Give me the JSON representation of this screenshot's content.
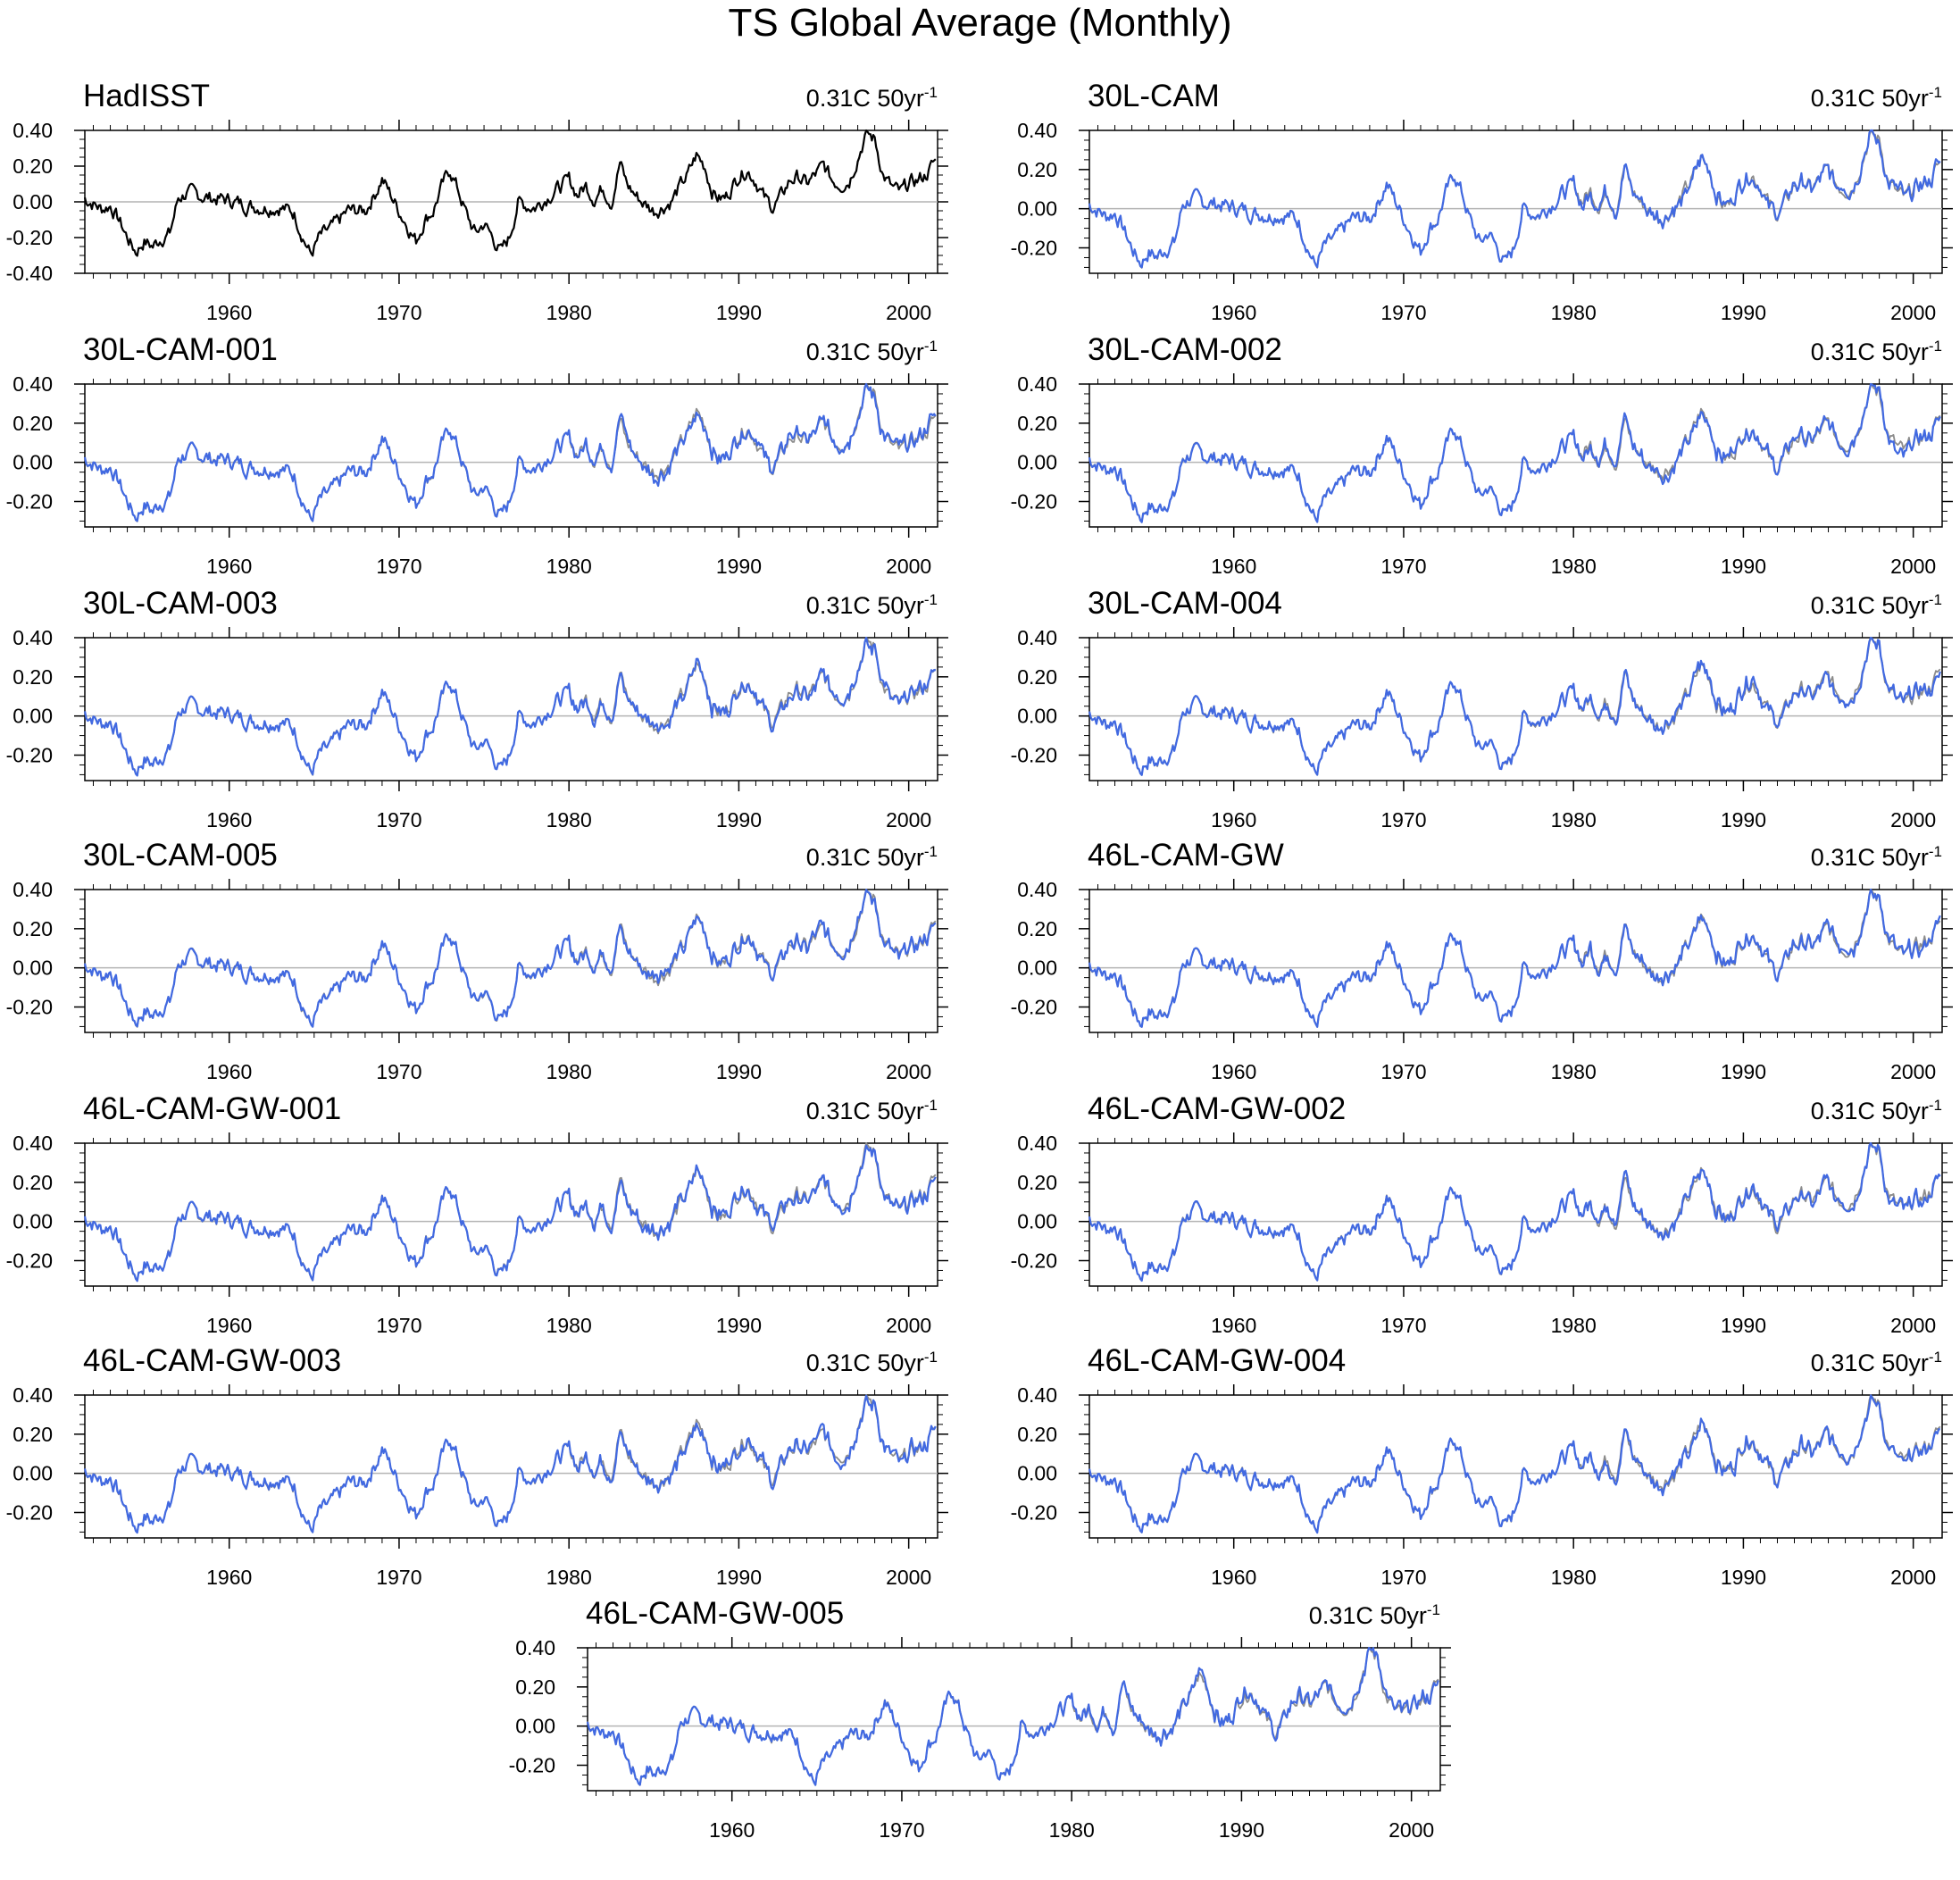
{
  "title": "TS Global Average (Monthly)",
  "colors": {
    "observed": "#000000",
    "model": "#4169e1",
    "reference": "#8c8c8c",
    "zero_line": "#b4b4b4",
    "axis": "#000000"
  },
  "chart_data": {
    "type": "line",
    "x_range": [
      1951.5,
      2001.7
    ],
    "xticks": [
      1960,
      1970,
      1980,
      1990,
      2000
    ],
    "xtick_labels": [
      "1960",
      "1970",
      "1980",
      "1990",
      "2000"
    ],
    "shared_monthly_anomaly_keypoints": {
      "x": [
        1951.5,
        1952.0,
        1952.5,
        1953.0,
        1953.5,
        1954.0,
        1954.5,
        1955.0,
        1955.5,
        1956.0,
        1956.5,
        1957.0,
        1957.5,
        1958.0,
        1958.5,
        1959.0,
        1960.0,
        1961.0,
        1962.0,
        1963.0,
        1963.8,
        1964.3,
        1964.8,
        1965.3,
        1966.0,
        1967.0,
        1968.0,
        1968.6,
        1969.0,
        1969.5,
        1970.0,
        1970.6,
        1971.0,
        1971.5,
        1972.0,
        1972.5,
        1973.0,
        1973.5,
        1974.0,
        1974.5,
        1975.0,
        1975.5,
        1976.0,
        1976.5,
        1977.0,
        1977.5,
        1978.0,
        1979.0,
        1980.0,
        1980.5,
        1981.0,
        1981.5,
        1982.0,
        1982.5,
        1983.0,
        1983.4,
        1983.8,
        1984.3,
        1985.0,
        1985.5,
        1986.0,
        1986.5,
        1987.0,
        1987.5,
        1988.0,
        1988.4,
        1988.8,
        1989.2,
        1990.0,
        1990.5,
        1991.0,
        1991.5,
        1992.0,
        1992.5,
        1993.0,
        1993.5,
        1994.0,
        1994.5,
        1995.0,
        1995.5,
        1996.0,
        1996.5,
        1997.0,
        1997.5,
        1998.0,
        1998.5,
        1999.0,
        1999.5,
        2000.0,
        2000.5,
        2001.0,
        2001.5
      ],
      "y": [
        0.02,
        -0.01,
        -0.04,
        -0.02,
        -0.1,
        -0.2,
        -0.28,
        -0.22,
        -0.25,
        -0.2,
        -0.18,
        0.02,
        0.05,
        0.04,
        0.03,
        0.02,
        0.01,
        -0.02,
        -0.03,
        -0.03,
        -0.06,
        -0.18,
        -0.3,
        -0.2,
        -0.15,
        -0.05,
        -0.05,
        0.05,
        0.13,
        0.04,
        -0.05,
        -0.15,
        -0.22,
        -0.1,
        -0.05,
        0.08,
        0.18,
        0.06,
        -0.08,
        -0.18,
        -0.12,
        -0.2,
        -0.28,
        -0.2,
        0.0,
        -0.02,
        -0.03,
        0.05,
        0.12,
        0.04,
        0.09,
        0.02,
        0.08,
        0.0,
        0.22,
        0.1,
        0.05,
        0.0,
        -0.05,
        -0.03,
        0.0,
        0.08,
        0.15,
        0.26,
        0.2,
        0.07,
        0.02,
        0.02,
        0.15,
        0.18,
        0.12,
        0.02,
        -0.03,
        0.03,
        0.12,
        0.14,
        0.1,
        0.15,
        0.2,
        0.12,
        0.1,
        0.12,
        0.25,
        0.38,
        0.35,
        0.15,
        0.08,
        0.05,
        0.1,
        0.12,
        0.15,
        0.22
      ]
    },
    "panels": [
      {
        "name": "HadISST",
        "trend": "0.31C 50yr",
        "trend_exp": "-1",
        "ylim": [
          -0.4,
          0.4
        ],
        "yticks": [
          -0.4,
          -0.2,
          0.0,
          0.2,
          0.4
        ],
        "ytick_labels": [
          "-0.40",
          "-0.20",
          "0.00",
          "0.20",
          "0.40"
        ],
        "series": [
          {
            "role": "observed",
            "seed": 1
          }
        ]
      },
      {
        "name": "30L-CAM",
        "trend": "0.31C 50yr",
        "trend_exp": "-1",
        "ylim": [
          -0.33,
          0.4
        ],
        "yticks": [
          -0.2,
          0.0,
          0.2,
          0.4
        ],
        "ytick_labels": [
          "-0.20",
          "0.00",
          "0.20",
          "0.40"
        ],
        "series": [
          {
            "role": "reference",
            "seed": 1
          },
          {
            "role": "model",
            "seed": 2
          }
        ]
      },
      {
        "name": "30L-CAM-001",
        "trend": "0.31C 50yr",
        "trend_exp": "-1",
        "ylim": [
          -0.33,
          0.4
        ],
        "yticks": [
          -0.2,
          0.0,
          0.2,
          0.4
        ],
        "ytick_labels": [
          "-0.20",
          "0.00",
          "0.20",
          "0.40"
        ],
        "series": [
          {
            "role": "reference",
            "seed": 1
          },
          {
            "role": "model",
            "seed": 3
          }
        ]
      },
      {
        "name": "30L-CAM-002",
        "trend": "0.31C 50yr",
        "trend_exp": "-1",
        "ylim": [
          -0.33,
          0.4
        ],
        "yticks": [
          -0.2,
          0.0,
          0.2,
          0.4
        ],
        "ytick_labels": [
          "-0.20",
          "0.00",
          "0.20",
          "0.40"
        ],
        "series": [
          {
            "role": "reference",
            "seed": 1
          },
          {
            "role": "model",
            "seed": 4
          }
        ]
      },
      {
        "name": "30L-CAM-003",
        "trend": "0.31C 50yr",
        "trend_exp": "-1",
        "ylim": [
          -0.33,
          0.4
        ],
        "yticks": [
          -0.2,
          0.0,
          0.2,
          0.4
        ],
        "ytick_labels": [
          "-0.20",
          "0.00",
          "0.20",
          "0.40"
        ],
        "series": [
          {
            "role": "reference",
            "seed": 1
          },
          {
            "role": "model",
            "seed": 5
          }
        ]
      },
      {
        "name": "30L-CAM-004",
        "trend": "0.31C 50yr",
        "trend_exp": "-1",
        "ylim": [
          -0.33,
          0.4
        ],
        "yticks": [
          -0.2,
          0.0,
          0.2,
          0.4
        ],
        "ytick_labels": [
          "-0.20",
          "0.00",
          "0.20",
          "0.40"
        ],
        "series": [
          {
            "role": "reference",
            "seed": 1
          },
          {
            "role": "model",
            "seed": 6
          }
        ]
      },
      {
        "name": "30L-CAM-005",
        "trend": "0.31C 50yr",
        "trend_exp": "-1",
        "ylim": [
          -0.33,
          0.4
        ],
        "yticks": [
          -0.2,
          0.0,
          0.2,
          0.4
        ],
        "ytick_labels": [
          "-0.20",
          "0.00",
          "0.20",
          "0.40"
        ],
        "series": [
          {
            "role": "reference",
            "seed": 1
          },
          {
            "role": "model",
            "seed": 7
          }
        ]
      },
      {
        "name": "46L-CAM-GW",
        "trend": "0.31C 50yr",
        "trend_exp": "-1",
        "ylim": [
          -0.33,
          0.4
        ],
        "yticks": [
          -0.2,
          0.0,
          0.2,
          0.4
        ],
        "ytick_labels": [
          "-0.20",
          "0.00",
          "0.20",
          "0.40"
        ],
        "series": [
          {
            "role": "reference",
            "seed": 1
          },
          {
            "role": "model",
            "seed": 8
          }
        ]
      },
      {
        "name": "46L-CAM-GW-001",
        "trend": "0.31C 50yr",
        "trend_exp": "-1",
        "ylim": [
          -0.33,
          0.4
        ],
        "yticks": [
          -0.2,
          0.0,
          0.2,
          0.4
        ],
        "ytick_labels": [
          "-0.20",
          "0.00",
          "0.20",
          "0.40"
        ],
        "series": [
          {
            "role": "reference",
            "seed": 1
          },
          {
            "role": "model",
            "seed": 9
          }
        ]
      },
      {
        "name": "46L-CAM-GW-002",
        "trend": "0.31C 50yr",
        "trend_exp": "-1",
        "ylim": [
          -0.33,
          0.4
        ],
        "yticks": [
          -0.2,
          0.0,
          0.2,
          0.4
        ],
        "ytick_labels": [
          "-0.20",
          "0.00",
          "0.20",
          "0.40"
        ],
        "series": [
          {
            "role": "reference",
            "seed": 1
          },
          {
            "role": "model",
            "seed": 10
          }
        ]
      },
      {
        "name": "46L-CAM-GW-003",
        "trend": "0.31C 50yr",
        "trend_exp": "-1",
        "ylim": [
          -0.33,
          0.4
        ],
        "yticks": [
          -0.2,
          0.0,
          0.2,
          0.4
        ],
        "ytick_labels": [
          "-0.20",
          "0.00",
          "0.20",
          "0.40"
        ],
        "series": [
          {
            "role": "reference",
            "seed": 1
          },
          {
            "role": "model",
            "seed": 11
          }
        ]
      },
      {
        "name": "46L-CAM-GW-004",
        "trend": "0.31C 50yr",
        "trend_exp": "-1",
        "ylim": [
          -0.33,
          0.4
        ],
        "yticks": [
          -0.2,
          0.0,
          0.2,
          0.4
        ],
        "ytick_labels": [
          "-0.20",
          "0.00",
          "0.20",
          "0.40"
        ],
        "series": [
          {
            "role": "reference",
            "seed": 1
          },
          {
            "role": "model",
            "seed": 12
          }
        ]
      },
      {
        "name": "46L-CAM-GW-005",
        "trend": "0.31C 50yr",
        "trend_exp": "-1",
        "ylim": [
          -0.33,
          0.4
        ],
        "yticks": [
          -0.2,
          0.0,
          0.2,
          0.4
        ],
        "ytick_labels": [
          "-0.20",
          "0.00",
          "0.20",
          "0.40"
        ],
        "series": [
          {
            "role": "reference",
            "seed": 1
          },
          {
            "role": "model",
            "seed": 13
          }
        ]
      }
    ]
  }
}
